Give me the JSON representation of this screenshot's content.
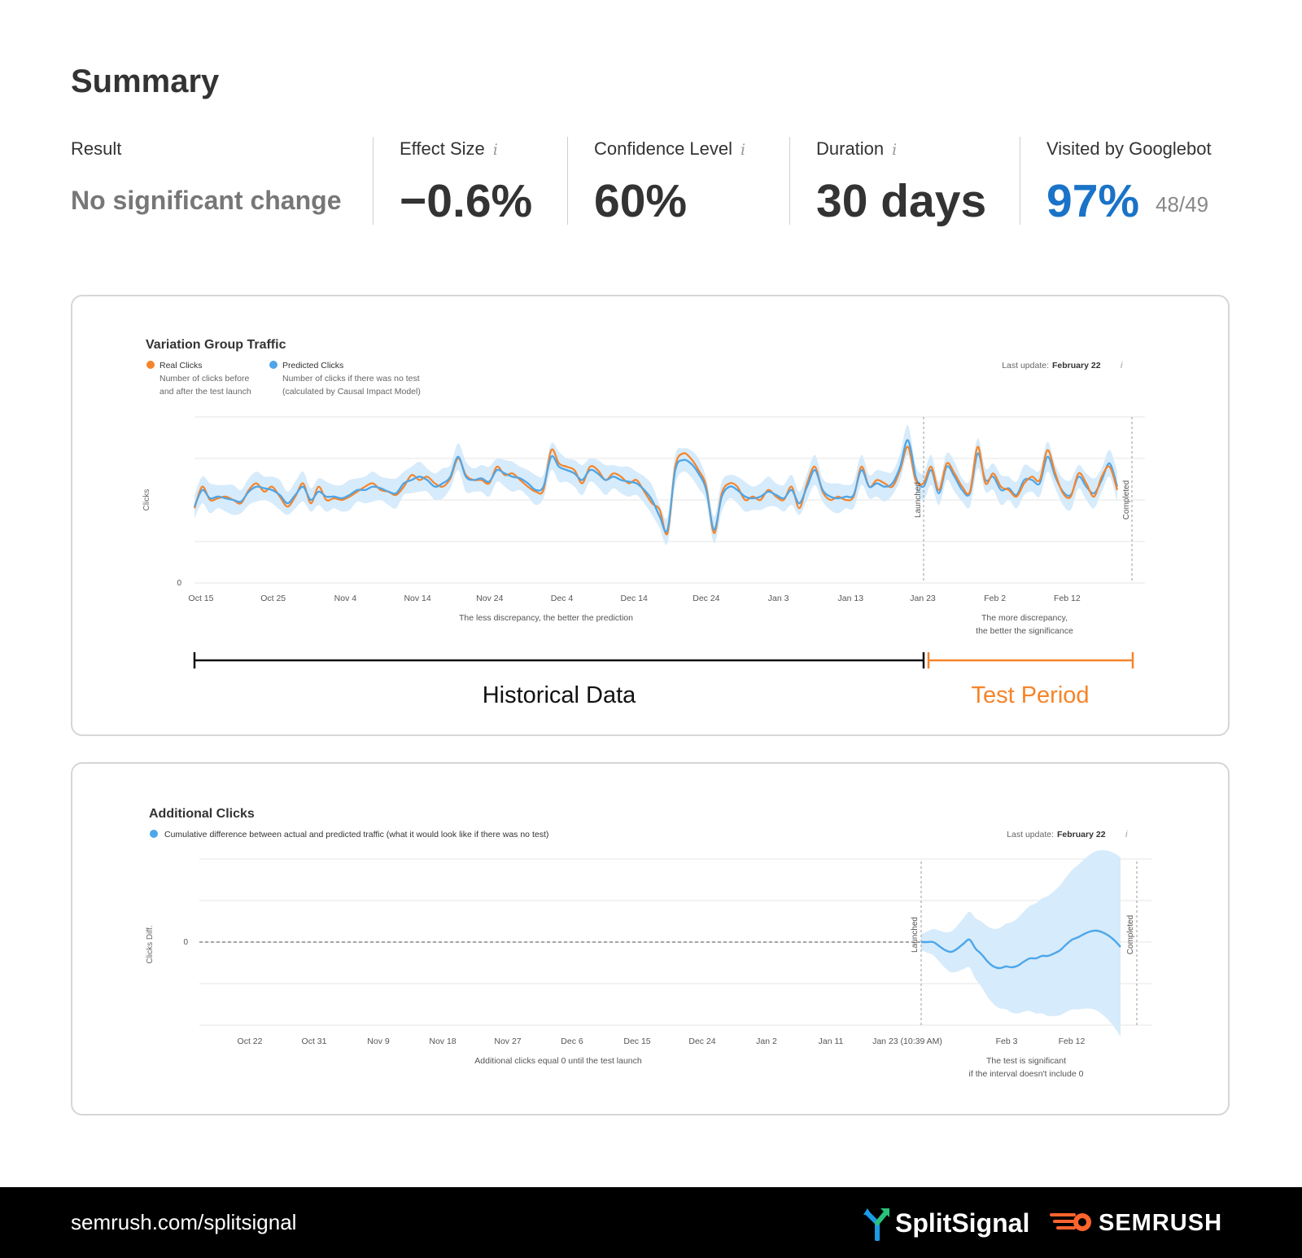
{
  "summary": {
    "title": "Summary",
    "result_label": "Result",
    "result_value": "No significant change",
    "effect_label": "Effect Size",
    "effect_value": "−0.6%",
    "confidence_label": "Confidence Level",
    "confidence_value": "60%",
    "duration_label": "Duration",
    "duration_value": "30 days",
    "googlebot_label": "Visited by Googlebot",
    "googlebot_value": "97%",
    "googlebot_count": "48/49",
    "info_glyph": "i"
  },
  "colors": {
    "real": "#f5842a",
    "predicted": "#4da6ea",
    "band": "#d6ebfb",
    "accent_blue": "#1a73c8",
    "test_period": "#f5842a"
  },
  "traffic_chart": {
    "title": "Variation Group Traffic",
    "legend_real_title": "Real Clicks",
    "legend_real_desc1": "Number of clicks before",
    "legend_real_desc2": "and after the test launch",
    "legend_pred_title": "Predicted Clicks",
    "legend_pred_desc1": "Number of clicks if there was no test",
    "legend_pred_desc2": "(calculated by Causal Impact Model)",
    "last_update_prefix": "Last update:",
    "last_update_date": "February 22",
    "y_axis_label": "Clicks",
    "y_zero_label": "0",
    "launched_label": "Launched",
    "completed_label": "Completed",
    "note_left": "The less discrepancy, the better the prediction",
    "note_right_1": "The more discrepancy,",
    "note_right_2": "the better the significance",
    "historical_label": "Historical Data",
    "test_label": "Test Period",
    "x_ticks": [
      "Oct 15",
      "Oct 25",
      "Nov 4",
      "Nov 14",
      "Nov 24",
      "Dec 4",
      "Dec 14",
      "Dec 24",
      "Jan 3",
      "Jan 13",
      "Jan 23",
      "Feb 2",
      "Feb 12"
    ]
  },
  "additional_chart": {
    "title": "Additional Clicks",
    "legend_desc": "Cumulative difference between actual and predicted traffic (what it would look like if there was no test)",
    "last_update_prefix": "Last update:",
    "last_update_date": "February 22",
    "y_axis_label": "Clicks Diff.",
    "y_zero_label": "0",
    "launched_label": "Launched",
    "completed_label": "Completed",
    "note_left": "Additional clicks equal 0 until the test launch",
    "note_right_1": "The test is significant",
    "note_right_2": "if the interval doesn't include 0",
    "x_ticks": [
      "Oct 22",
      "Oct 31",
      "Nov 9",
      "Nov 18",
      "Nov 27",
      "Dec 6",
      "Dec 15",
      "Dec 24",
      "Jan 2",
      "Jan 11",
      "Jan 23 (10:39 AM)",
      "Feb 3",
      "Feb 12"
    ]
  },
  "footer": {
    "url": "semrush.com/splitsignal",
    "splitsignal_brand": "SplitSignal",
    "semrush_brand": "SEMRUSH"
  },
  "chart_data": [
    {
      "type": "line",
      "title": "Variation Group Traffic",
      "ylabel": "Clicks",
      "x_start": "Oct 15",
      "x_step": "1 day",
      "launch": "Jan 23",
      "series": [
        {
          "name": "Real Clicks",
          "values": [
            45,
            58,
            50,
            51,
            52,
            50,
            48,
            56,
            60,
            55,
            58,
            52,
            46,
            52,
            60,
            48,
            58,
            50,
            51,
            50,
            52,
            55,
            58,
            60,
            56,
            55,
            53,
            58,
            65,
            62,
            64,
            60,
            58,
            63,
            75,
            65,
            62,
            62,
            60,
            70,
            65,
            66,
            62,
            58,
            55,
            56,
            80,
            72,
            70,
            68,
            60,
            70,
            68,
            62,
            66,
            64,
            60,
            62,
            55,
            48,
            44,
            30,
            70,
            78,
            75,
            68,
            58,
            30,
            54,
            60,
            58,
            50,
            52,
            50,
            56,
            52,
            50,
            58,
            45,
            60,
            70,
            55,
            50,
            52,
            50,
            52,
            70,
            58,
            62,
            60,
            58,
            68,
            82,
            62,
            60,
            70,
            56,
            72,
            66,
            58,
            55,
            82,
            60,
            66,
            58,
            56,
            52,
            60,
            64,
            62,
            80,
            66,
            54,
            52,
            66,
            60,
            52,
            64,
            70,
            56
          ]
        },
        {
          "name": "Predicted Clicks",
          "values": [
            46,
            56,
            51,
            52,
            51,
            50,
            49,
            55,
            58,
            57,
            56,
            53,
            48,
            53,
            58,
            50,
            55,
            52,
            52,
            51,
            53,
            56,
            56,
            58,
            57,
            55,
            54,
            60,
            62,
            64,
            62,
            58,
            60,
            64,
            76,
            64,
            62,
            63,
            61,
            68,
            66,
            64,
            63,
            60,
            56,
            58,
            76,
            70,
            68,
            66,
            62,
            68,
            66,
            62,
            64,
            62,
            61,
            60,
            56,
            50,
            40,
            32,
            68,
            74,
            72,
            66,
            56,
            32,
            52,
            58,
            56,
            52,
            51,
            52,
            55,
            53,
            51,
            56,
            48,
            58,
            68,
            56,
            52,
            51,
            52,
            53,
            68,
            58,
            60,
            58,
            60,
            70,
            86,
            64,
            58,
            68,
            54,
            70,
            64,
            56,
            54,
            78,
            62,
            64,
            56,
            57,
            53,
            62,
            62,
            60,
            76,
            64,
            55,
            53,
            64,
            58,
            54,
            62,
            72,
            58
          ]
        }
      ]
    },
    {
      "type": "area",
      "title": "Additional Clicks",
      "ylabel": "Clicks Diff.",
      "launch": "Jan 23 (10:39 AM)",
      "series": [
        {
          "name": "Cumulative difference between actual and predicted traffic",
          "values": [
            0,
            0,
            0,
            -0.5,
            -1,
            -1.2,
            -0.8,
            -0.2,
            0.3,
            -0.8,
            -1.5,
            -2.4,
            -3.0,
            -3.2,
            -3.0,
            -3.1,
            -2.9,
            -2.4,
            -2.0,
            -2.0,
            -1.7,
            -1.7,
            -1.4,
            -1.0,
            -0.3,
            0.3,
            0.6,
            1.0,
            1.3,
            1.4,
            1.2,
            0.8,
            0.2,
            -0.6
          ]
        }
      ]
    }
  ]
}
